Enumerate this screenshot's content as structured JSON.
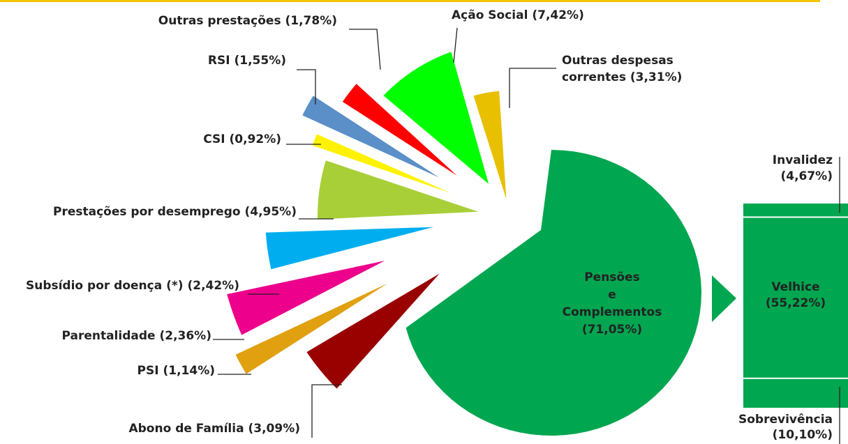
{
  "chart_data": [
    {
      "type": "pie",
      "categories": [
        "Pensões\ne\nComplementos\n(71,05%)",
        "Abono de Família (3,09%)",
        "PSI (1,14%)",
        "Parentalidade (2,36%)",
        "Subsídio por doença (*) (2,42%)",
        "Prestações por desemprego (4,95%)",
        "CSI (0,92%)",
        "RSI (1,55%)",
        "Outras prestações (1,78%)",
        "Ação Social (7,42%)",
        "Outras despesas\ncorrentes (3,31%)"
      ],
      "values": [
        71.05,
        3.09,
        1.14,
        2.36,
        2.42,
        4.95,
        0.92,
        1.55,
        1.78,
        7.42,
        3.31
      ],
      "colors": [
        "#00a650",
        "#990000",
        "#e0a010",
        "#ec008c",
        "#00aeef",
        "#a8cf38",
        "#fff200",
        "#5a8fc8",
        "#ff0000",
        "#00ff00",
        "#e8c000"
      ]
    },
    {
      "type": "bar",
      "categories": [
        "Invalidez\n(4,67%)",
        "Velhice\n(55,22%)",
        "Sobrevivência\n(10,10%)"
      ],
      "values": [
        4.67,
        55.22,
        10.1
      ],
      "color": "#00a650"
    }
  ]
}
